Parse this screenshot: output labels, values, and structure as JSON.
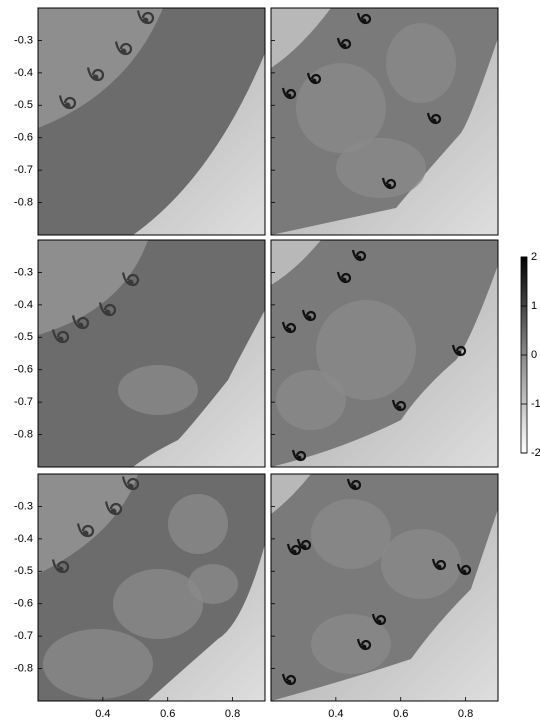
{
  "figure": {
    "xlim": [
      0.2,
      0.9
    ],
    "ylim": [
      -0.9,
      -0.2
    ],
    "rows": [
      {
        "y_ticks": [
          -0.3,
          -0.4,
          -0.5,
          -0.6,
          -0.7,
          -0.8
        ]
      },
      {
        "y_ticks": [
          -0.3,
          -0.4,
          -0.5,
          -0.6,
          -0.7,
          -0.8
        ]
      },
      {
        "y_ticks": [
          -0.3,
          -0.4,
          -0.5,
          -0.6,
          -0.7,
          -0.8
        ]
      }
    ],
    "columns": [
      {
        "x_ticks": [
          0.4,
          0.6,
          0.8
        ]
      },
      {
        "x_ticks": [
          0.4,
          0.6,
          0.8
        ]
      }
    ],
    "colorbar": {
      "range": [
        -2,
        2
      ],
      "ticks": [
        2,
        1,
        0,
        -1,
        -2
      ]
    }
  }
}
